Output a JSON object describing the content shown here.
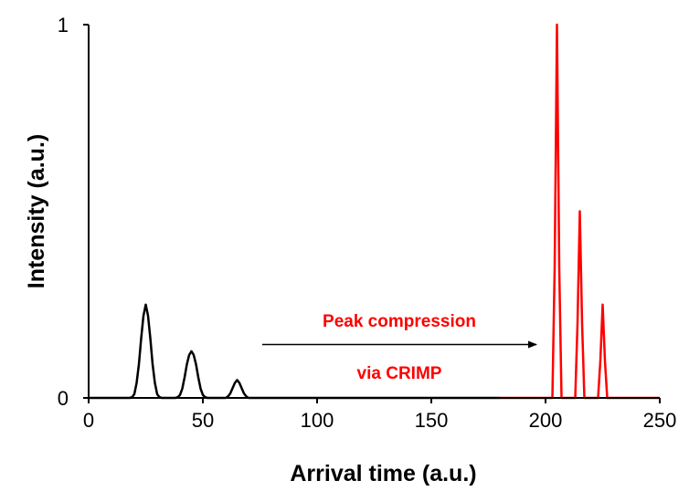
{
  "chart_data": {
    "type": "line",
    "xlabel": "Arrival time (a.u.)",
    "ylabel": "Intensity (a.u.)",
    "xlim": [
      0,
      250
    ],
    "ylim": [
      0,
      1
    ],
    "x_ticks": [
      0,
      50,
      100,
      150,
      200,
      250
    ],
    "y_ticks": [
      0,
      1
    ],
    "grid": false,
    "series": [
      {
        "color": "#000000",
        "x": [
          0,
          18,
          19,
          20,
          21,
          22,
          23,
          24,
          25,
          26,
          27,
          28,
          29,
          30,
          31,
          32,
          38,
          39,
          40,
          41,
          42,
          43,
          44,
          45,
          46,
          47,
          48,
          49,
          50,
          51,
          52,
          60,
          61,
          62,
          63,
          64,
          65,
          66,
          67,
          68,
          69,
          70,
          180
        ],
        "y": [
          0,
          0,
          0.002,
          0.01,
          0.04,
          0.09,
          0.16,
          0.22,
          0.25,
          0.22,
          0.16,
          0.09,
          0.04,
          0.01,
          0.002,
          0,
          0,
          0.002,
          0.008,
          0.025,
          0.055,
          0.09,
          0.115,
          0.125,
          0.115,
          0.09,
          0.055,
          0.025,
          0.008,
          0.002,
          0,
          0,
          0.004,
          0.012,
          0.026,
          0.04,
          0.048,
          0.04,
          0.026,
          0.012,
          0.004,
          0,
          0
        ]
      },
      {
        "color": "#ff0000",
        "x": [
          180,
          203,
          204,
          205,
          206,
          207,
          213,
          214,
          215,
          216,
          217,
          223,
          224,
          225,
          226,
          227,
          250
        ],
        "y": [
          0,
          0,
          0.35,
          1.0,
          0.35,
          0,
          0,
          0.2,
          0.5,
          0.2,
          0,
          0,
          0.1,
          0.25,
          0.1,
          0,
          0
        ]
      }
    ],
    "annotations": [
      {
        "text": "Peak compression",
        "color": "#ff0000"
      },
      {
        "text": "via CRIMP",
        "color": "#ff0000"
      }
    ],
    "arrow": {
      "from": 76,
      "to": 196,
      "y": 0.143
    }
  }
}
